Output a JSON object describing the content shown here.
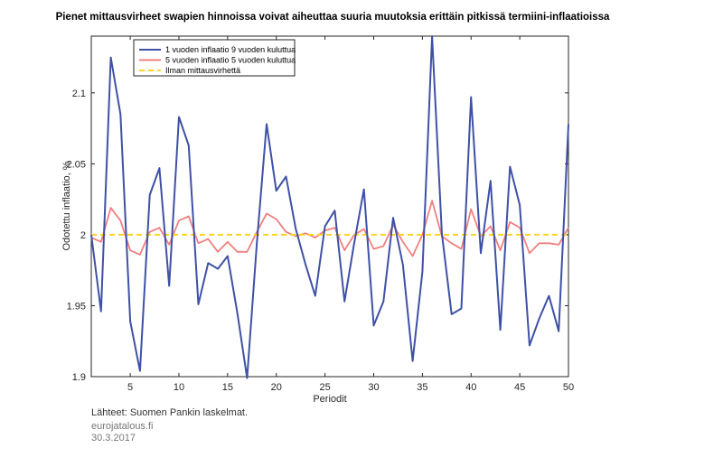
{
  "chart_data": {
    "type": "line",
    "title": "Pienet mittausvirheet swapien hinnoissa voivat aiheuttaa suuria muutoksia erittäin pitkissä termiini-inflaatioissa",
    "xlabel": "Periodit",
    "ylabel": "Odotettu inflaatio, %",
    "xlim": [
      1,
      50
    ],
    "ylim": [
      1.9,
      2.14
    ],
    "x_ticks": [
      5,
      10,
      15,
      20,
      25,
      30,
      35,
      40,
      45,
      50
    ],
    "y_ticks": [
      1.9,
      1.95,
      2,
      2.05,
      2.1
    ],
    "y_tick_labels": [
      "1.9",
      "1.95",
      "2",
      "2.05",
      "2.1"
    ],
    "grid": false,
    "legend_position": "top-left",
    "x": [
      1,
      2,
      3,
      4,
      5,
      6,
      7,
      8,
      9,
      10,
      11,
      12,
      13,
      14,
      15,
      16,
      17,
      18,
      19,
      20,
      21,
      22,
      23,
      24,
      25,
      26,
      27,
      28,
      29,
      30,
      31,
      32,
      33,
      34,
      35,
      36,
      37,
      38,
      39,
      40,
      41,
      42,
      43,
      44,
      45,
      46,
      47,
      48,
      49,
      50
    ],
    "series": [
      {
        "name": "1 vuoden inflaatio 9 vuoden kuluttua",
        "color": "#3f51a5",
        "style": "solid",
        "values": [
          2.0,
          1.946,
          2.125,
          2.085,
          1.939,
          1.904,
          2.028,
          2.047,
          1.964,
          2.083,
          2.063,
          1.951,
          1.98,
          1.976,
          1.985,
          1.945,
          1.899,
          1.994,
          2.078,
          2.031,
          2.041,
          2.004,
          1.979,
          1.957,
          2.006,
          2.017,
          1.953,
          1.994,
          2.032,
          1.936,
          1.953,
          2.012,
          1.979,
          1.911,
          1.974,
          2.14,
          2.001,
          1.944,
          1.948,
          2.097,
          1.987,
          2.038,
          1.933,
          2.048,
          2.021,
          1.922,
          1.941,
          1.957,
          1.932,
          2.078
        ]
      },
      {
        "name": "5 vuoden inflaatio 5 vuoden kuluttua",
        "color": "#f08080",
        "style": "solid",
        "values": [
          1.998,
          1.995,
          2.019,
          2.01,
          1.989,
          1.986,
          2.002,
          2.005,
          1.993,
          2.01,
          2.013,
          1.994,
          1.997,
          1.988,
          1.995,
          1.988,
          1.988,
          2.002,
          2.015,
          2.011,
          2.002,
          1.999,
          2.001,
          1.998,
          2.003,
          2.005,
          1.989,
          2.0,
          2.004,
          1.99,
          1.992,
          2.007,
          1.995,
          1.985,
          2.0,
          2.024,
          1.999,
          1.994,
          1.99,
          2.018,
          1.999,
          2.006,
          1.989,
          2.009,
          2.005,
          1.987,
          1.994,
          1.994,
          1.993,
          2.005
        ]
      },
      {
        "name": "Ilman mittausvirhettä",
        "color": "#ffd21f",
        "style": "dashed",
        "values": [
          2,
          2,
          2,
          2,
          2,
          2,
          2,
          2,
          2,
          2,
          2,
          2,
          2,
          2,
          2,
          2,
          2,
          2,
          2,
          2,
          2,
          2,
          2,
          2,
          2,
          2,
          2,
          2,
          2,
          2,
          2,
          2,
          2,
          2,
          2,
          2,
          2,
          2,
          2,
          2,
          2,
          2,
          2,
          2,
          2,
          2,
          2,
          2,
          2,
          2
        ]
      }
    ]
  },
  "footer": {
    "source": "Lähteet: Suomen Pankin laskelmat.",
    "site": "eurojatalous.fi",
    "date": "30.3.2017"
  }
}
